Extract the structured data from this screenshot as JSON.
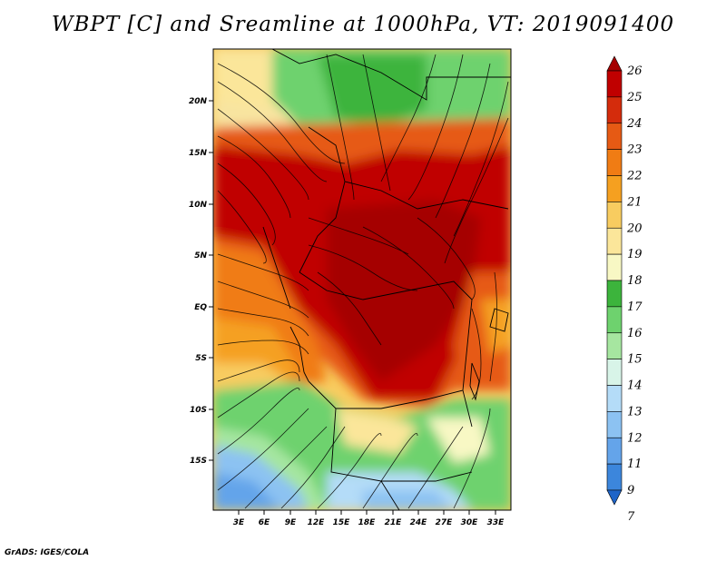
{
  "title": "WBPT [C] and Sreamline at 1000hPa, VT: 2019091400",
  "credit": "GrADS: IGES/COLA",
  "map": {
    "lat_labels": [
      "20N",
      "15N",
      "10N",
      "5N",
      "EQ",
      "5S",
      "10S",
      "15S"
    ],
    "lon_labels": [
      "3E",
      "6E",
      "9E",
      "12E",
      "15E",
      "18E",
      "21E",
      "24E",
      "27E",
      "30E",
      "33E"
    ]
  },
  "colorbar": {
    "levels": [
      "26",
      "25",
      "24",
      "23",
      "22",
      "21",
      "20",
      "19",
      "18",
      "17",
      "16",
      "15",
      "14",
      "13",
      "12",
      "11",
      "9",
      "7"
    ],
    "colors": [
      "#a50000",
      "#c00000",
      "#d42c0c",
      "#e65a14",
      "#f07c14",
      "#f5a020",
      "#f8cc60",
      "#fbe69a",
      "#f8f8c4",
      "#3cb43c",
      "#6ed26e",
      "#a6e6a0",
      "#d8f4e8",
      "#b4dcf8",
      "#8cc2f2",
      "#64a4ea",
      "#3c86dc",
      "#1e64c8"
    ]
  }
}
